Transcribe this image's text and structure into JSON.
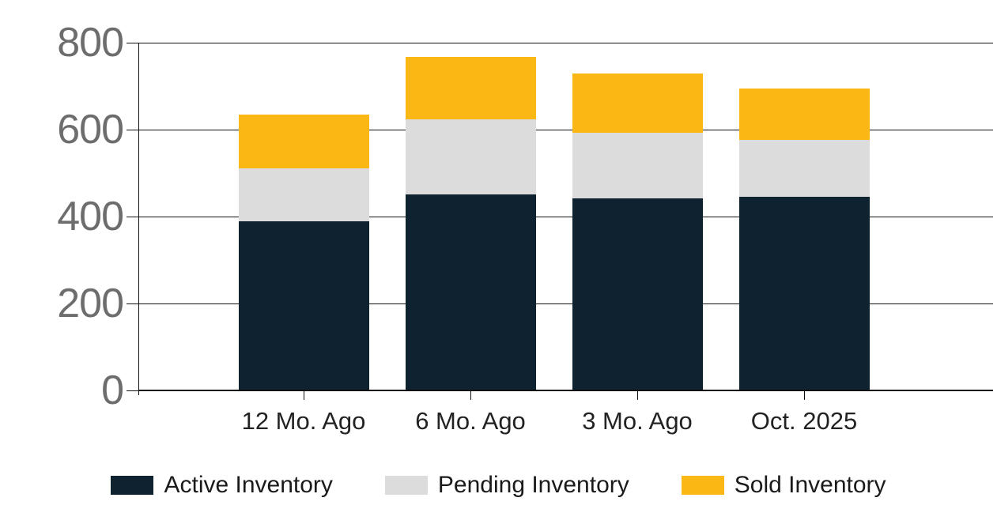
{
  "chart_data": {
    "type": "bar",
    "stacked": true,
    "title": "",
    "xlabel": "",
    "ylabel": "",
    "categories": [
      "12 Mo. Ago",
      "6 Mo. Ago",
      "3 Mo. Ago",
      "Oct. 2025"
    ],
    "series": [
      {
        "name": "Active Inventory",
        "color": "#0e2230",
        "values": [
          389,
          451,
          442,
          445
        ]
      },
      {
        "name": "Pending Inventory",
        "color": "#dcdcdc",
        "values": [
          122,
          173,
          151,
          131
        ]
      },
      {
        "name": "Sold Inventory",
        "color": "#fbb713",
        "values": [
          123,
          143,
          136,
          119
        ]
      }
    ],
    "totals": [
      634,
      767,
      729,
      695
    ],
    "ylim": [
      0,
      800
    ],
    "yticks": [
      0,
      200,
      400,
      600,
      800
    ],
    "grid": true,
    "legend_position": "bottom"
  },
  "colors": {
    "axis": "#111111",
    "y_tick_label": "#6d6d6d",
    "x_tick_label": "#222222",
    "legend_text": "#1a1a1a",
    "background": "#ffffff"
  }
}
